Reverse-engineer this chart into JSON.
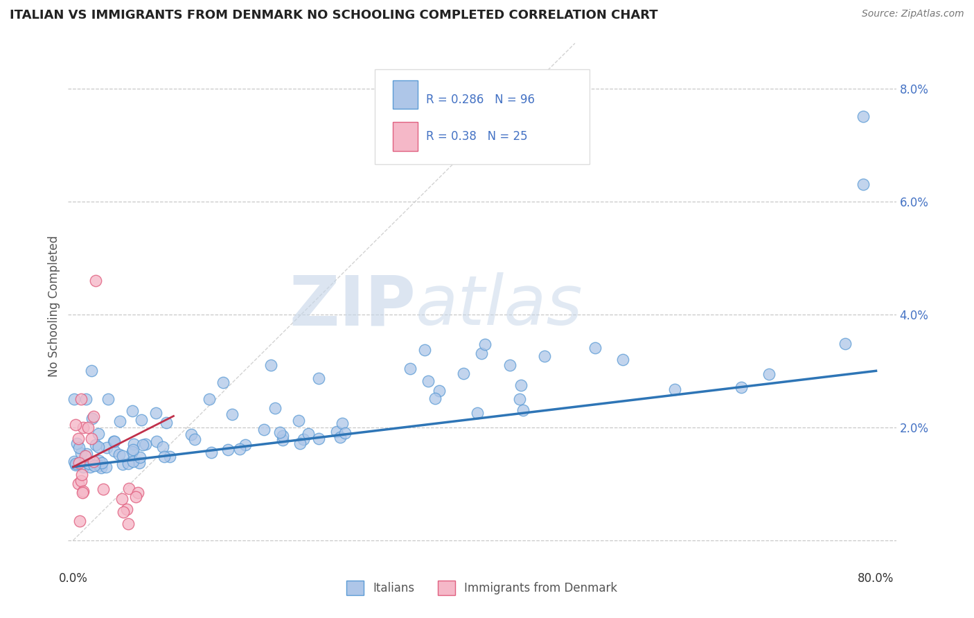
{
  "title": "ITALIAN VS IMMIGRANTS FROM DENMARK NO SCHOOLING COMPLETED CORRELATION CHART",
  "source": "Source: ZipAtlas.com",
  "ylabel": "No Schooling Completed",
  "xlim": [
    -0.005,
    0.82
  ],
  "ylim": [
    -0.005,
    0.088
  ],
  "xticks": [
    0.0,
    0.1,
    0.2,
    0.3,
    0.4,
    0.5,
    0.6,
    0.7,
    0.8
  ],
  "xticklabels": [
    "0.0%",
    "",
    "",
    "",
    "",
    "",
    "",
    "",
    "80.0%"
  ],
  "yticks": [
    0.0,
    0.02,
    0.04,
    0.06,
    0.08
  ],
  "yticklabels": [
    "",
    "2.0%",
    "4.0%",
    "6.0%",
    "8.0%"
  ],
  "italian_fill": "#aec6e8",
  "italian_edge": "#5b9bd5",
  "danish_fill": "#f5b8c8",
  "danish_edge": "#e06080",
  "italian_line_color": "#2e75b6",
  "danish_line_color": "#c0304a",
  "R_italian": 0.286,
  "N_italian": 96,
  "R_danish": 0.38,
  "N_danish": 25,
  "watermark_zip": "ZIP",
  "watermark_atlas": "atlas",
  "background_color": "#ffffff",
  "grid_color": "#c8c8c8",
  "text_color": "#4472c4",
  "legend_text_color": "#4472c4"
}
